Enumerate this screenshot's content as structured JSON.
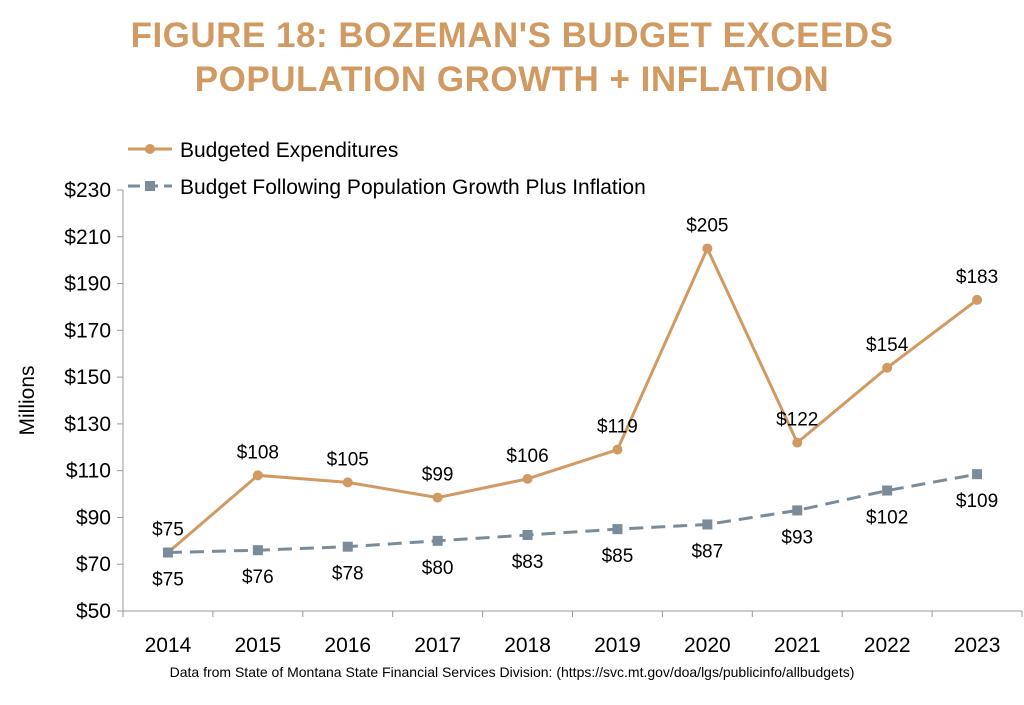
{
  "title": {
    "line1": "FIGURE 18: BOZEMAN'S BUDGET EXCEEDS",
    "line2": "POPULATION GROWTH + INFLATION"
  },
  "footnote": "Data from State of Montana State Financial Services Division: (https://svc.mt.gov/doa/lgs/publicinfo/allbudgets)",
  "chart_data": {
    "type": "line",
    "categories": [
      "2014",
      "2015",
      "2016",
      "2017",
      "2018",
      "2019",
      "2020",
      "2021",
      "2022",
      "2023"
    ],
    "ylabel": "Millions",
    "xlabel": "",
    "ylim": [
      50,
      230
    ],
    "yticks": [
      50,
      70,
      90,
      110,
      130,
      150,
      170,
      190,
      210,
      230
    ],
    "ytick_labels": [
      "$50",
      "$70",
      "$90",
      "$110",
      "$130",
      "$150",
      "$170",
      "$190",
      "$210",
      "$230"
    ],
    "grid": false,
    "legend_position": "top-left",
    "series": [
      {
        "name": "Budgeted Expenditures",
        "values": [
          75,
          108,
          105,
          98.5,
          106.5,
          119,
          205,
          122,
          154,
          183
        ],
        "labels": [
          "$75",
          "$108",
          "$105",
          "$99",
          "$106",
          "$119",
          "$205",
          "$122",
          "$154",
          "$183"
        ],
        "color": "#D19A62",
        "marker": "circle",
        "dash": "solid"
      },
      {
        "name": "Budget Following Population Growth Plus Inflation",
        "values": [
          75,
          76,
          77.5,
          80,
          82.5,
          85,
          87,
          93,
          101.5,
          108.5
        ],
        "labels": [
          "$75",
          "$76",
          "$78",
          "$80",
          "$83",
          "$85",
          "$87",
          "$93",
          "$102",
          "$109"
        ],
        "color": "#7A8B99",
        "marker": "square",
        "dash": "dashed"
      }
    ]
  }
}
